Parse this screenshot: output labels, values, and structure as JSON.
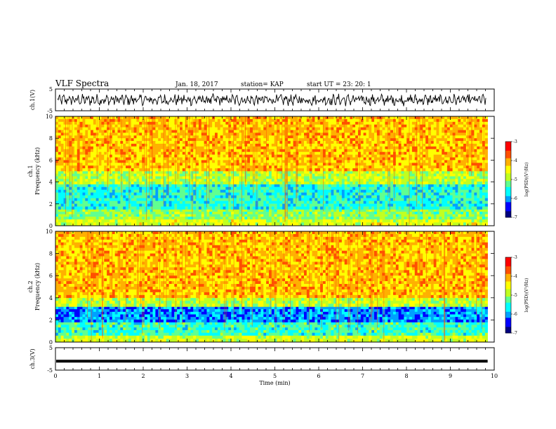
{
  "header": {
    "title": "VLF Spectra",
    "date": "Jan. 18, 2017",
    "station": "station= KAP",
    "start_ut": "start UT =   23: 20: 1"
  },
  "chart_data": [
    {
      "type": "line",
      "panel": "ch1-voltage",
      "ylabel": "ch.1(V)",
      "ylim": [
        -5,
        5
      ],
      "yticks": [
        "5",
        "-5"
      ],
      "description_values": {
        "mean": 0,
        "amplitude_range": [
          -3,
          3
        ]
      }
    },
    {
      "type": "heatmap",
      "panel": "ch1-spectrogram",
      "ylabel_lines": [
        "ch.1",
        "Frequency (kHz)"
      ],
      "ylim": [
        0,
        10
      ],
      "yticks": [
        "0",
        "2",
        "4",
        "6",
        "8",
        "10"
      ],
      "bands": [
        {
          "from": 0,
          "to": 0.6,
          "log_psd": -4.6
        },
        {
          "from": 0.6,
          "to": 1.5,
          "log_psd": -5.0
        },
        {
          "from": 1.5,
          "to": 3.8,
          "log_psd": -5.5
        },
        {
          "from": 3.8,
          "to": 5.0,
          "log_psd": -4.8
        },
        {
          "from": 5.0,
          "to": 10,
          "log_psd": -4.1
        }
      ],
      "colorbar": {
        "min": -7,
        "max": -3,
        "ticks": [
          "-3",
          "-4",
          "-5",
          "-6",
          "-7"
        ],
        "label": "log(PSD)(V²/Hz)"
      }
    },
    {
      "type": "heatmap",
      "panel": "ch2-spectrogram",
      "ylabel_lines": [
        "ch.2",
        "Frequency (kHz)"
      ],
      "ylim": [
        0,
        10
      ],
      "yticks": [
        "0",
        "2",
        "4",
        "6",
        "8",
        "10"
      ],
      "bands": [
        {
          "from": 0,
          "to": 0.6,
          "log_psd": -4.7
        },
        {
          "from": 0.6,
          "to": 1.8,
          "log_psd": -5.4
        },
        {
          "from": 1.8,
          "to": 3.2,
          "log_psd": -6.0
        },
        {
          "from": 3.2,
          "to": 4.0,
          "log_psd": -4.8
        },
        {
          "from": 4.0,
          "to": 10,
          "log_psd": -4.1
        }
      ],
      "colorbar": {
        "min": -7,
        "max": -3,
        "ticks": [
          "-3",
          "-4",
          "-5",
          "-6",
          "-7"
        ],
        "label": "log(PSD)(V²/Hz)"
      }
    },
    {
      "type": "line",
      "panel": "ch3-voltage",
      "ylabel": "ch.3(V)",
      "ylim": [
        -5,
        5
      ],
      "yticks": [
        "5",
        "-5"
      ],
      "constant_value": -1,
      "xlabel": "Time (min)",
      "xlim": [
        0,
        10
      ],
      "xticks": [
        "0",
        "1",
        "2",
        "3",
        "4",
        "5",
        "6",
        "7",
        "8",
        "9",
        "10"
      ]
    }
  ],
  "colors": {
    "colormap": [
      "#00007f",
      "#0000ff",
      "#00a0ff",
      "#00ffff",
      "#60ff90",
      "#c0ff20",
      "#ffff00",
      "#ffb000",
      "#ff5000",
      "#ff0000",
      "#ffffff"
    ]
  }
}
